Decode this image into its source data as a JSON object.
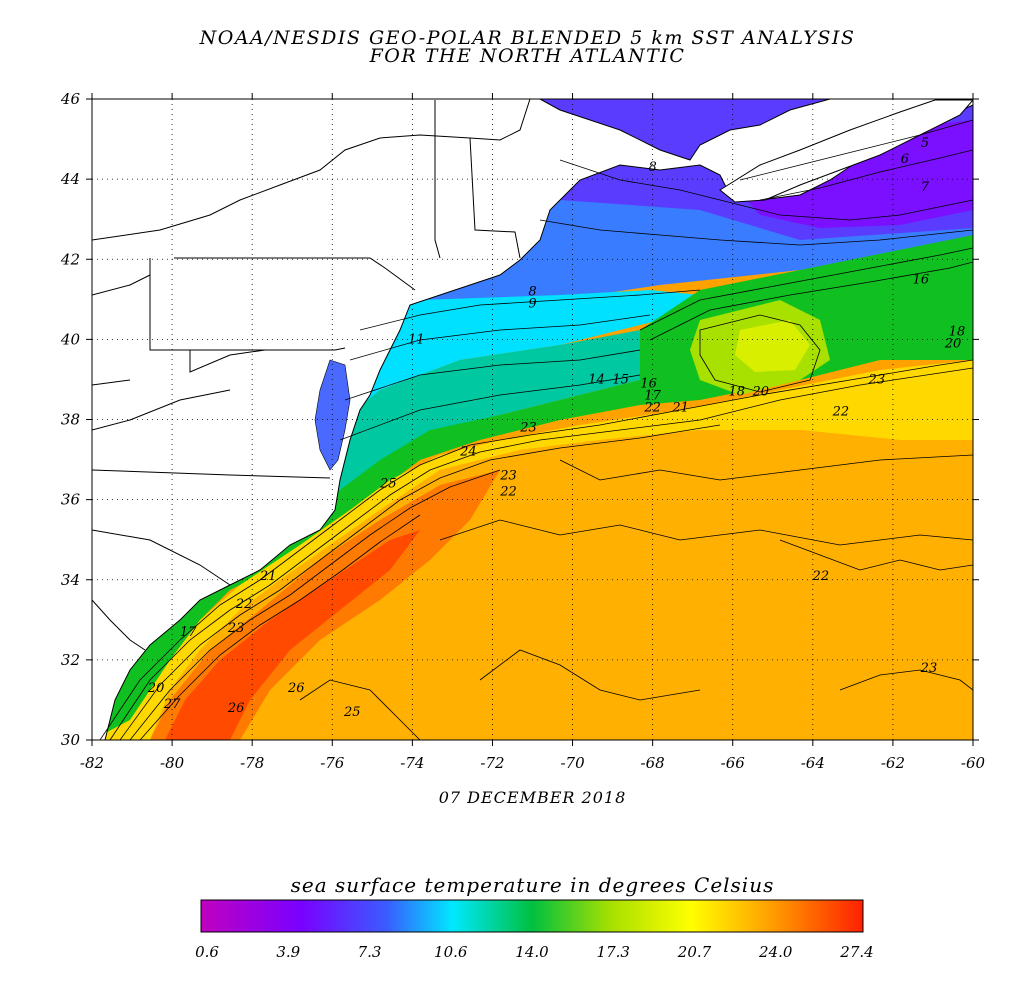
{
  "title_line1": "NOAA/NESDIS GEO-POLAR BLENDED 5 km SST ANALYSIS",
  "title_line2": "FOR THE NORTH ATLANTIC",
  "date": "07 DECEMBER 2018",
  "colorbar": {
    "title": "sea surface temperature in degrees Celsius",
    "ticks": [
      "0.6",
      "3.9",
      "7.3",
      "10.6",
      "14.0",
      "17.3",
      "20.7",
      "24.0",
      "27.4"
    ],
    "colors": [
      "#c000c0",
      "#7a00ff",
      "#3a5cff",
      "#00e8ff",
      "#00c040",
      "#a8e000",
      "#ffff00",
      "#ffa000",
      "#ff2000"
    ]
  },
  "map": {
    "lon_ticks": [
      "-82",
      "-80",
      "-78",
      "-76",
      "-74",
      "-72",
      "-70",
      "-68",
      "-66",
      "-64",
      "-62",
      "-60"
    ],
    "lat_ticks": [
      "46",
      "44",
      "42",
      "40",
      "38",
      "36",
      "34",
      "32",
      "30"
    ],
    "lon_range": [
      -82,
      -60
    ],
    "lat_range": [
      30,
      46
    ],
    "contour_labels": [
      {
        "text": "5",
        "lon": -61.2,
        "lat": 44.8
      },
      {
        "text": "6",
        "lon": -61.7,
        "lat": 44.4
      },
      {
        "text": "7",
        "lon": -61.2,
        "lat": 43.7
      },
      {
        "text": "8",
        "lon": -68.0,
        "lat": 44.2
      },
      {
        "text": "8",
        "lon": -71.0,
        "lat": 41.1
      },
      {
        "text": "9",
        "lon": -71.0,
        "lat": 40.8
      },
      {
        "text": "16",
        "lon": -61.3,
        "lat": 41.4
      },
      {
        "text": "18",
        "lon": -60.4,
        "lat": 40.1
      },
      {
        "text": "20",
        "lon": -60.5,
        "lat": 39.8
      },
      {
        "text": "11",
        "lon": -73.9,
        "lat": 39.9
      },
      {
        "text": "14",
        "lon": -69.4,
        "lat": 38.9
      },
      {
        "text": "15",
        "lon": -68.8,
        "lat": 38.9
      },
      {
        "text": "16",
        "lon": -68.1,
        "lat": 38.8
      },
      {
        "text": "17",
        "lon": -68.0,
        "lat": 38.5
      },
      {
        "text": "18",
        "lon": -65.9,
        "lat": 38.6
      },
      {
        "text": "20",
        "lon": -65.3,
        "lat": 38.6
      },
      {
        "text": "21",
        "lon": -67.3,
        "lat": 38.2
      },
      {
        "text": "22",
        "lon": -68.0,
        "lat": 38.2
      },
      {
        "text": "22",
        "lon": -63.3,
        "lat": 38.1
      },
      {
        "text": "23",
        "lon": -62.4,
        "lat": 38.9
      },
      {
        "text": "23",
        "lon": -71.1,
        "lat": 37.7
      },
      {
        "text": "24",
        "lon": -72.6,
        "lat": 37.1
      },
      {
        "text": "23",
        "lon": -71.6,
        "lat": 36.5
      },
      {
        "text": "22",
        "lon": -71.6,
        "lat": 36.1
      },
      {
        "text": "25",
        "lon": -74.6,
        "lat": 36.3
      },
      {
        "text": "22",
        "lon": -63.8,
        "lat": 34.0
      },
      {
        "text": "23",
        "lon": -61.1,
        "lat": 31.7
      },
      {
        "text": "21",
        "lon": -77.6,
        "lat": 34.0
      },
      {
        "text": "22",
        "lon": -78.2,
        "lat": 33.3
      },
      {
        "text": "23",
        "lon": -78.4,
        "lat": 32.7
      },
      {
        "text": "17",
        "lon": -79.6,
        "lat": 32.6
      },
      {
        "text": "26",
        "lon": -76.9,
        "lat": 31.2
      },
      {
        "text": "26",
        "lon": -78.4,
        "lat": 30.7
      },
      {
        "text": "25",
        "lon": -75.5,
        "lat": 30.6
      },
      {
        "text": "27",
        "lon": -80.0,
        "lat": 30.8
      },
      {
        "text": "20",
        "lon": -80.4,
        "lat": 31.2
      }
    ]
  }
}
